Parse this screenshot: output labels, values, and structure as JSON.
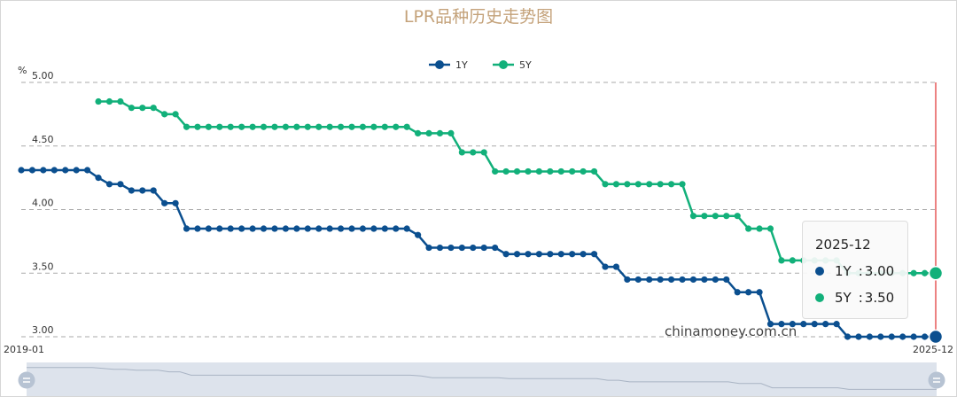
{
  "chart_data": {
    "type": "line",
    "title": "LPR品种历史走势图",
    "unit": "%",
    "ylim": [
      3.0,
      5.0
    ],
    "y_ticks": [
      "5.00",
      "4.50",
      "4.00",
      "3.50",
      "3.00"
    ],
    "x_start_label": "2019-01",
    "x_end_label": "2025-12",
    "grid": true,
    "legend_position": "top-center",
    "series": [
      {
        "name": "1Y",
        "color": "#0b4f8f",
        "values": [
          4.31,
          4.31,
          4.31,
          4.31,
          4.31,
          4.31,
          4.31,
          4.25,
          4.2,
          4.2,
          4.15,
          4.15,
          4.15,
          4.05,
          4.05,
          3.85,
          3.85,
          3.85,
          3.85,
          3.85,
          3.85,
          3.85,
          3.85,
          3.85,
          3.85,
          3.85,
          3.85,
          3.85,
          3.85,
          3.85,
          3.85,
          3.85,
          3.85,
          3.85,
          3.85,
          3.85,
          3.8,
          3.7,
          3.7,
          3.7,
          3.7,
          3.7,
          3.7,
          3.7,
          3.65,
          3.65,
          3.65,
          3.65,
          3.65,
          3.65,
          3.65,
          3.65,
          3.65,
          3.55,
          3.55,
          3.45,
          3.45,
          3.45,
          3.45,
          3.45,
          3.45,
          3.45,
          3.45,
          3.45,
          3.45,
          3.35,
          3.35,
          3.35,
          3.1,
          3.1,
          3.1,
          3.1,
          3.1,
          3.1,
          3.1,
          3.0,
          3.0,
          3.0,
          3.0,
          3.0,
          3.0,
          3.0,
          3.0,
          3.0
        ]
      },
      {
        "name": "5Y",
        "color": "#12b07a",
        "values": [
          null,
          null,
          null,
          null,
          null,
          null,
          null,
          4.85,
          4.85,
          4.85,
          4.8,
          4.8,
          4.8,
          4.75,
          4.75,
          4.65,
          4.65,
          4.65,
          4.65,
          4.65,
          4.65,
          4.65,
          4.65,
          4.65,
          4.65,
          4.65,
          4.65,
          4.65,
          4.65,
          4.65,
          4.65,
          4.65,
          4.65,
          4.65,
          4.65,
          4.65,
          4.6,
          4.6,
          4.6,
          4.6,
          4.45,
          4.45,
          4.45,
          4.3,
          4.3,
          4.3,
          4.3,
          4.3,
          4.3,
          4.3,
          4.3,
          4.3,
          4.3,
          4.2,
          4.2,
          4.2,
          4.2,
          4.2,
          4.2,
          4.2,
          4.2,
          3.95,
          3.95,
          3.95,
          3.95,
          3.95,
          3.85,
          3.85,
          3.85,
          3.6,
          3.6,
          3.6,
          3.6,
          3.6,
          3.6,
          3.5,
          3.5,
          3.5,
          3.5,
          3.5,
          3.5,
          3.5,
          3.5,
          3.5
        ]
      }
    ],
    "tooltip": {
      "date": "2025-12",
      "rows": [
        {
          "name": "1Y",
          "value": "3.00"
        },
        {
          "name": "5Y",
          "value": "3.50"
        }
      ]
    }
  },
  "watermark": "chinamoney.com.cn",
  "colors": {
    "axis_pointer": "#e03030",
    "grid_line": "#aaaaaa",
    "zoom_fill": "#dde3ec",
    "zoom_handle": "#b7c3d3"
  }
}
